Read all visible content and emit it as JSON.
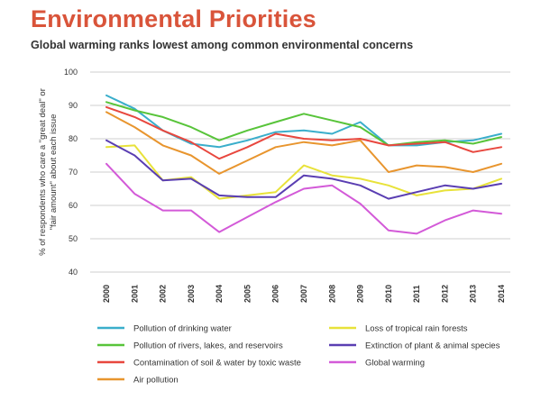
{
  "title": "Environmental Priorities",
  "subtitle": "Global warming ranks lowest among common environmental concerns",
  "chart_data": {
    "type": "line",
    "ylabel_lines": [
      "% of respondents who care a \"great deal\" or",
      "\"fair amount\" about each issue"
    ],
    "ylim": [
      40,
      100
    ],
    "yticks": [
      40,
      50,
      60,
      70,
      80,
      90,
      100
    ],
    "x": [
      "2000",
      "2001",
      "2002",
      "2003",
      "2004",
      "2005",
      "2006",
      "2007",
      "2008",
      "2009",
      "2010",
      "2011",
      "2012",
      "2013",
      "2014"
    ],
    "grid": "horizontal",
    "legend_position": "bottom",
    "series": [
      {
        "name": "Pollution of drinking water",
        "color": "#3aaecb",
        "values": [
          93,
          89,
          82.5,
          78.5,
          77.5,
          79.5,
          82,
          82.5,
          81.5,
          85,
          78,
          78,
          79,
          79.5,
          81.5
        ]
      },
      {
        "name": "Pollution of rivers, lakes, and reservoirs",
        "color": "#58c43a",
        "values": [
          91,
          88.5,
          86.5,
          83.5,
          79.5,
          82.5,
          85,
          87.5,
          85.5,
          83.5,
          78,
          79,
          79.5,
          78.5,
          80.5
        ]
      },
      {
        "name": "Contamination of soil & water by toxic waste",
        "color": "#e8473e",
        "values": [
          89.5,
          86.5,
          82.5,
          79,
          74,
          77.5,
          81.5,
          80,
          79.5,
          80,
          78,
          78.5,
          79,
          76,
          77.5
        ]
      },
      {
        "name": "Air pollution",
        "color": "#e8952e",
        "values": [
          88,
          83.5,
          78,
          75,
          69.5,
          73.5,
          77.5,
          79,
          78,
          79.5,
          70,
          72,
          71.5,
          70,
          72.5
        ]
      },
      {
        "name": "Loss of tropical rain forests",
        "color": "#e8e23a",
        "values": [
          77.5,
          78,
          67.5,
          68.5,
          62,
          63,
          64,
          72,
          69,
          68,
          66,
          63,
          64.5,
          65,
          68
        ]
      },
      {
        "name": "Extinction of plant & animal species",
        "color": "#5a3eb2",
        "values": [
          79.5,
          75,
          67.5,
          68,
          63,
          62.5,
          62.5,
          69,
          68,
          66,
          62,
          64,
          66,
          65,
          66.5
        ]
      },
      {
        "name": "Global warming",
        "color": "#d35ad8",
        "values": [
          72.5,
          63.5,
          58.5,
          58.5,
          52,
          56.5,
          61,
          65,
          66,
          60.5,
          52.5,
          51.5,
          55.5,
          58.5,
          57.5
        ]
      }
    ]
  }
}
